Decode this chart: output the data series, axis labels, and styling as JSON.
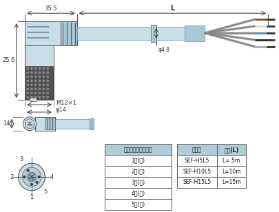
{
  "bg_color": "#ffffff",
  "connector_color": "#c8dfe8",
  "connector_mid": "#a8c8d8",
  "grip_color": "#505050",
  "grip_dot_color": "#707070",
  "cable_color": "#c8dfe8",
  "dim_color": "#333333",
  "table1_header": "コネクタービン配置",
  "table1_rows": [
    "1－(茶)",
    "2－(白)",
    "3－(青)",
    "4－(黒)",
    "5－(灰)"
  ],
  "table2_header_col1": "形　式",
  "table2_header_col2": "長さ(L)",
  "table2_rows": [
    [
      "SEF-H5L5",
      "L= 5m"
    ],
    [
      "SEF-H10L5",
      "L=10m"
    ],
    [
      "SEF-H15L5",
      "L=15m"
    ]
  ],
  "header_bg": "#b0ccd8",
  "dim_35_5": "35.5",
  "dim_L": "L",
  "dim_25_6": "25.6",
  "dim_phi48": "φ4.8",
  "dim_M12": "M12×1",
  "dim_phi14": "φ14",
  "dim_14": "14",
  "wire_colors": [
    "#888888",
    "#888888",
    "#888888",
    "#888888",
    "#888888"
  ],
  "wire_tip_colors": [
    "#8B4513",
    "#ffffff",
    "#4488cc",
    "#111111",
    "#999999"
  ]
}
